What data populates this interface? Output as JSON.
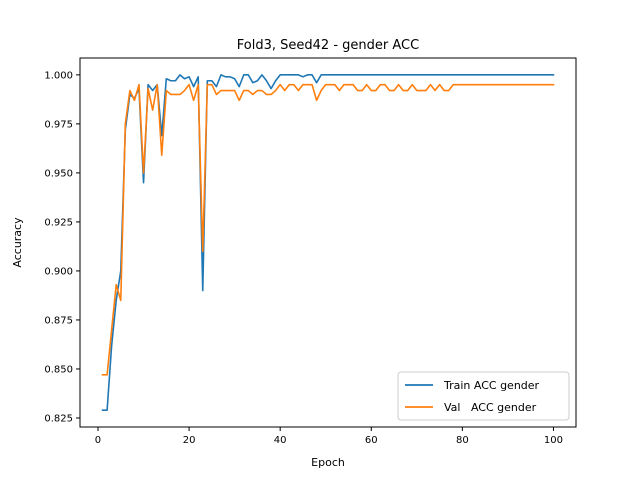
{
  "chart_data": {
    "type": "line",
    "title": "Fold3, Seed42 - gender ACC",
    "xlabel": "Epoch",
    "ylabel": "Accuracy",
    "xlim": [
      -3.95,
      104.95
    ],
    "ylim": [
      0.8204,
      1.0086
    ],
    "xticks": [
      0,
      20,
      40,
      60,
      80,
      100
    ],
    "yticks": [
      0.825,
      0.85,
      0.875,
      0.9,
      0.925,
      0.95,
      0.975,
      1.0
    ],
    "ytick_labels": [
      "0.825",
      "0.850",
      "0.875",
      "0.900",
      "0.925",
      "0.950",
      "0.975",
      "1.000"
    ],
    "grid": false,
    "legend_position": "lower-right",
    "series": [
      {
        "name": "Train ACC gender",
        "color": "#1f77b4",
        "x": [
          1,
          2,
          3,
          4,
          5,
          6,
          7,
          8,
          9,
          10,
          11,
          12,
          13,
          14,
          15,
          16,
          17,
          18,
          19,
          20,
          21,
          22,
          23,
          24,
          25,
          26,
          27,
          28,
          29,
          30,
          31,
          32,
          33,
          34,
          35,
          36,
          37,
          38,
          39,
          40,
          41,
          42,
          43,
          44,
          45,
          46,
          47,
          48,
          49,
          50,
          51,
          52,
          53,
          54,
          55,
          56,
          57,
          58,
          59,
          60,
          61,
          62,
          63,
          64,
          65,
          66,
          67,
          68,
          69,
          70,
          71,
          72,
          73,
          74,
          75,
          76,
          77,
          78,
          79,
          80,
          81,
          82,
          83,
          84,
          85,
          86,
          87,
          88,
          89,
          90,
          91,
          92,
          93,
          94,
          95,
          96,
          97,
          98,
          99,
          100
        ],
        "y": [
          0.829,
          0.829,
          0.862,
          0.885,
          0.9,
          0.972,
          0.99,
          0.988,
          0.993,
          0.945,
          0.995,
          0.992,
          0.995,
          0.969,
          0.998,
          0.997,
          0.997,
          1.0,
          0.998,
          0.999,
          0.994,
          0.999,
          0.89,
          0.997,
          0.997,
          0.994,
          1.0,
          0.999,
          0.999,
          0.998,
          0.994,
          1.0,
          1.0,
          0.996,
          0.997,
          1.0,
          0.997,
          0.993,
          0.997,
          1.0,
          1.0,
          1.0,
          1.0,
          1.0,
          0.999,
          1.0,
          1.0,
          0.996,
          1.0,
          1.0,
          1.0,
          1.0,
          1.0,
          1.0,
          1.0,
          1.0,
          1.0,
          1.0,
          1.0,
          1.0,
          1.0,
          1.0,
          1.0,
          1.0,
          1.0,
          1.0,
          1.0,
          1.0,
          1.0,
          1.0,
          1.0,
          1.0,
          1.0,
          1.0,
          1.0,
          1.0,
          1.0,
          1.0,
          1.0,
          1.0,
          1.0,
          1.0,
          1.0,
          1.0,
          1.0,
          1.0,
          1.0,
          1.0,
          1.0,
          1.0,
          1.0,
          1.0,
          1.0,
          1.0,
          1.0,
          1.0,
          1.0,
          1.0,
          1.0,
          1.0
        ]
      },
      {
        "name": "Val   ACC gender",
        "color": "#ff7f0e",
        "x": [
          1,
          2,
          3,
          4,
          5,
          6,
          7,
          8,
          9,
          10,
          11,
          12,
          13,
          14,
          15,
          16,
          17,
          18,
          19,
          20,
          21,
          22,
          23,
          24,
          25,
          26,
          27,
          28,
          29,
          30,
          31,
          32,
          33,
          34,
          35,
          36,
          37,
          38,
          39,
          40,
          41,
          42,
          43,
          44,
          45,
          46,
          47,
          48,
          49,
          50,
          51,
          52,
          53,
          54,
          55,
          56,
          57,
          58,
          59,
          60,
          61,
          62,
          63,
          64,
          65,
          66,
          67,
          68,
          69,
          70,
          71,
          72,
          73,
          74,
          75,
          76,
          77,
          78,
          79,
          80,
          81,
          82,
          83,
          84,
          85,
          86,
          87,
          88,
          89,
          90,
          91,
          92,
          93,
          94,
          95,
          96,
          97,
          98,
          99,
          100
        ],
        "y": [
          0.847,
          0.847,
          0.87,
          0.893,
          0.885,
          0.975,
          0.992,
          0.987,
          0.995,
          0.95,
          0.993,
          0.982,
          0.995,
          0.959,
          0.992,
          0.99,
          0.99,
          0.99,
          0.992,
          0.995,
          0.987,
          0.995,
          0.91,
          0.995,
          0.995,
          0.99,
          0.992,
          0.992,
          0.992,
          0.992,
          0.987,
          0.992,
          0.992,
          0.99,
          0.992,
          0.992,
          0.99,
          0.99,
          0.992,
          0.995,
          0.992,
          0.995,
          0.995,
          0.992,
          0.995,
          0.995,
          0.995,
          0.987,
          0.992,
          0.995,
          0.995,
          0.995,
          0.992,
          0.995,
          0.995,
          0.995,
          0.992,
          0.992,
          0.995,
          0.992,
          0.992,
          0.995,
          0.995,
          0.992,
          0.992,
          0.995,
          0.992,
          0.992,
          0.995,
          0.992,
          0.992,
          0.992,
          0.995,
          0.992,
          0.995,
          0.992,
          0.992,
          0.995,
          0.995,
          0.995,
          0.995,
          0.995,
          0.995,
          0.995,
          0.995,
          0.995,
          0.995,
          0.995,
          0.995,
          0.995,
          0.995,
          0.995,
          0.995,
          0.995,
          0.995,
          0.995,
          0.995,
          0.995,
          0.995,
          0.995
        ]
      }
    ]
  }
}
